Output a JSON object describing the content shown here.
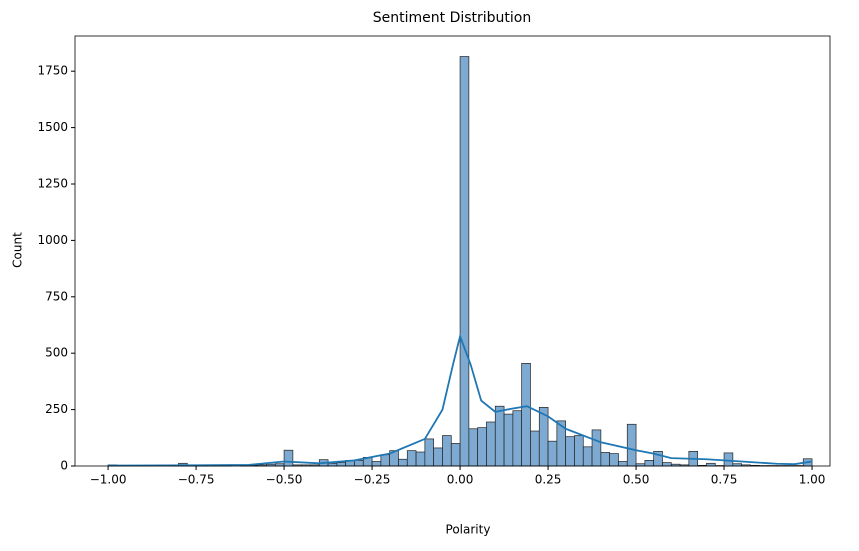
{
  "chart_data": {
    "type": "histogram",
    "title": "Sentiment Distribution",
    "x_label": "Polarity",
    "y_label": "Count",
    "bins": [
      -1,
      -0.975,
      -0.95,
      -0.925,
      -0.9,
      -0.875,
      -0.85,
      -0.825,
      -0.8,
      -0.775,
      -0.75,
      -0.725,
      -0.7,
      -0.675,
      -0.65,
      -0.625,
      -0.6,
      -0.575,
      -0.55,
      -0.525,
      -0.5,
      -0.475,
      -0.45,
      -0.425,
      -0.4,
      -0.375,
      -0.35,
      -0.325,
      -0.3,
      -0.275,
      -0.25,
      -0.225,
      -0.2,
      -0.175,
      -0.15,
      -0.125,
      -0.1,
      -0.075,
      -0.05,
      -0.025,
      0,
      0.025,
      0.05,
      0.075,
      0.1,
      0.125,
      0.15,
      0.175,
      0.2,
      0.225,
      0.25,
      0.275,
      0.3,
      0.325,
      0.35,
      0.375,
      0.4,
      0.425,
      0.45,
      0.475,
      0.5,
      0.525,
      0.55,
      0.575,
      0.6,
      0.625,
      0.65,
      0.675,
      0.7,
      0.725,
      0.75,
      0.775,
      0.8,
      0.825,
      0.85,
      0.875,
      0.9,
      0.925,
      0.95,
      0.975,
      1
    ],
    "counts": [
      5,
      0,
      0,
      0,
      0,
      0,
      0,
      2,
      12,
      3,
      2,
      2,
      2,
      2,
      0,
      2,
      3,
      5,
      8,
      10,
      70,
      5,
      5,
      5,
      28,
      12,
      15,
      25,
      25,
      38,
      20,
      50,
      68,
      30,
      68,
      62,
      120,
      80,
      135,
      100,
      1815,
      165,
      170,
      195,
      265,
      230,
      245,
      455,
      155,
      260,
      110,
      200,
      130,
      135,
      85,
      160,
      60,
      55,
      20,
      185,
      10,
      25,
      65,
      15,
      8,
      5,
      65,
      3,
      12,
      2,
      58,
      10,
      5,
      3,
      2,
      2,
      2,
      2,
      2,
      32
    ],
    "color": "#7eaad2",
    "kde": {
      "x": [
        -1,
        -0.75,
        -0.6,
        -0.5,
        -0.4,
        -0.3,
        -0.2,
        -0.1,
        -0.05,
        -0.02,
        0,
        0.03,
        0.06,
        0.1,
        0.15,
        0.19,
        0.25,
        0.3,
        0.4,
        0.5,
        0.55,
        0.6,
        0.7,
        0.8,
        0.9,
        0.95,
        1
      ],
      "values": [
        2,
        3,
        5,
        20,
        12,
        25,
        55,
        120,
        250,
        450,
        575,
        450,
        290,
        240,
        255,
        265,
        220,
        165,
        105,
        70,
        55,
        35,
        30,
        20,
        10,
        8,
        20
      ],
      "color": "#1f77b4"
    },
    "xlim": [
      -1.094,
      1.051
    ],
    "xticks": [
      {
        "value": -1,
        "label": "−1.00"
      },
      {
        "value": -0.75,
        "label": "−0.75"
      },
      {
        "value": -0.5,
        "label": "−0.50"
      },
      {
        "value": -0.25,
        "label": "−0.25"
      },
      {
        "value": 0,
        "label": "0.00"
      },
      {
        "value": 0.25,
        "label": "0.25"
      },
      {
        "value": 0.5,
        "label": "0.50"
      },
      {
        "value": 0.75,
        "label": "0.75"
      },
      {
        "value": 1,
        "label": "1.00"
      }
    ],
    "ylim": [
      0,
      1906
    ],
    "yticks": [
      0,
      250,
      500,
      750,
      1000,
      1250,
      1500,
      1750
    ]
  }
}
